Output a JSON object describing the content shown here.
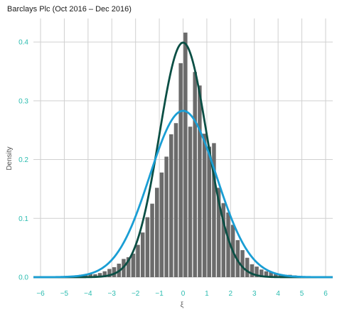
{
  "chart_data": {
    "type": "bar",
    "title": "Barclays Plc (Oct 2016 – Dec 2016)",
    "xlabel": "ξ",
    "ylabel": "Density",
    "xlim": [
      -6.3,
      6.3
    ],
    "ylim": [
      0,
      0.44
    ],
    "x_ticks": [
      -6,
      -5,
      -4,
      -3,
      -2,
      -1,
      0,
      1,
      2,
      3,
      4,
      5,
      6
    ],
    "x_tick_labels": [
      "−6",
      "−5",
      "−4",
      "−3",
      "−2",
      "−1",
      "0",
      "1",
      "2",
      "3",
      "4",
      "5",
      "6"
    ],
    "y_ticks": [
      0.0,
      0.1,
      0.2,
      0.3,
      0.4
    ],
    "y_tick_labels": [
      "0.0",
      "0.1",
      "0.2",
      "0.3",
      "0.4"
    ],
    "grid": true,
    "histogram": {
      "bin_width": 0.2,
      "bin_centers": [
        -5.1,
        -4.9,
        -4.7,
        -4.5,
        -4.3,
        -4.1,
        -3.9,
        -3.7,
        -3.5,
        -3.3,
        -3.1,
        -2.9,
        -2.7,
        -2.5,
        -2.3,
        -2.1,
        -1.9,
        -1.7,
        -1.5,
        -1.3,
        -1.1,
        -0.9,
        -0.7,
        -0.5,
        -0.3,
        -0.1,
        0.1,
        0.3,
        0.5,
        0.7,
        0.9,
        1.1,
        1.3,
        1.5,
        1.7,
        1.9,
        2.1,
        2.3,
        2.5,
        2.7,
        2.9,
        3.1,
        3.3,
        3.5,
        3.7,
        3.9,
        4.1,
        4.3,
        4.5,
        4.7,
        4.9,
        5.1
      ],
      "densities": [
        0.001,
        0.002,
        0.002,
        0.003,
        0.004,
        0.005,
        0.006,
        0.005,
        0.007,
        0.01,
        0.014,
        0.017,
        0.023,
        0.031,
        0.034,
        0.04,
        0.055,
        0.076,
        0.102,
        0.125,
        0.152,
        0.178,
        0.205,
        0.243,
        0.262,
        0.364,
        0.416,
        0.256,
        0.349,
        0.326,
        0.244,
        0.222,
        0.228,
        0.152,
        0.126,
        0.11,
        0.089,
        0.063,
        0.046,
        0.033,
        0.022,
        0.018,
        0.013,
        0.01,
        0.009,
        0.007,
        0.005,
        0.004,
        0.004,
        0.003,
        0.002,
        0.001
      ],
      "color": "#6b6b6b"
    },
    "curves": [
      {
        "sigma": 1.0,
        "color": "#0b4f45"
      },
      {
        "sigma": 1.41,
        "color": "#1a9ed4"
      }
    ],
    "colors": {
      "tick_text": "#2bbcb0",
      "grid": "#d0d0d0"
    }
  }
}
